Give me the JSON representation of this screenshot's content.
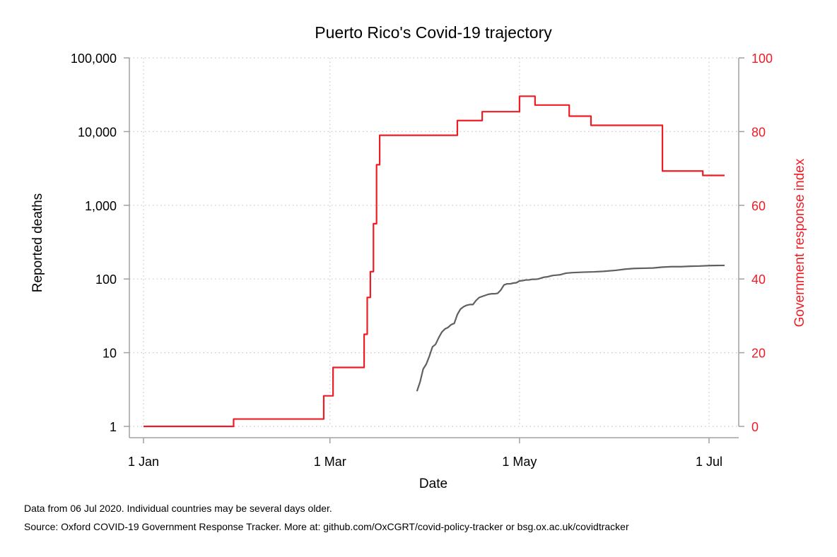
{
  "chart_data": {
    "type": "line",
    "title": "Puerto Rico's Covid-19 trajectory",
    "xlabel": "Date",
    "ylabel_left": "Reported deaths",
    "ylabel_right": "Government response index",
    "x_ticks": [
      {
        "date": "2020-01-01",
        "label": "1 Jan"
      },
      {
        "date": "2020-03-01",
        "label": "1 Mar"
      },
      {
        "date": "2020-05-01",
        "label": "1 May"
      },
      {
        "date": "2020-07-01",
        "label": "1 Jul"
      }
    ],
    "xlim": [
      "2020-01-01",
      "2020-07-06"
    ],
    "left_axis": {
      "scale": "log",
      "ylim": [
        1,
        100000
      ],
      "ticks": [
        {
          "value": 1,
          "label": "1"
        },
        {
          "value": 10,
          "label": "10"
        },
        {
          "value": 100,
          "label": "100"
        },
        {
          "value": 1000,
          "label": "1,000"
        },
        {
          "value": 10000,
          "label": "10,000"
        },
        {
          "value": 100000,
          "label": "100,000"
        }
      ]
    },
    "right_axis": {
      "scale": "linear",
      "ylim": [
        0,
        100
      ],
      "ticks": [
        {
          "value": 0,
          "label": "0"
        },
        {
          "value": 20,
          "label": "20"
        },
        {
          "value": 40,
          "label": "40"
        },
        {
          "value": 60,
          "label": "60"
        },
        {
          "value": 80,
          "label": "80"
        },
        {
          "value": 100,
          "label": "100"
        }
      ]
    },
    "grid": true,
    "series": [
      {
        "axis": "right",
        "color": "#ee1c25",
        "step": true,
        "points": [
          [
            "2020-01-01",
            0
          ],
          [
            "2020-01-30",
            2
          ],
          [
            "2020-02-28",
            8.3
          ],
          [
            "2020-03-02",
            16
          ],
          [
            "2020-03-11",
            16
          ],
          [
            "2020-03-12",
            25
          ],
          [
            "2020-03-13",
            35
          ],
          [
            "2020-03-14",
            42
          ],
          [
            "2020-03-15",
            55
          ],
          [
            "2020-03-16",
            71
          ],
          [
            "2020-03-17",
            79
          ],
          [
            "2020-04-10",
            79
          ],
          [
            "2020-04-11",
            83
          ],
          [
            "2020-04-19",
            85.4
          ],
          [
            "2020-05-01",
            89.6
          ],
          [
            "2020-05-06",
            87.2
          ],
          [
            "2020-05-17",
            84.2
          ],
          [
            "2020-05-24",
            81.7
          ],
          [
            "2020-06-16",
            69.3
          ],
          [
            "2020-06-29",
            68.1
          ],
          [
            "2020-07-06",
            68.1
          ]
        ]
      },
      {
        "axis": "left",
        "color": "#606060",
        "step": false,
        "points": [
          [
            "2020-03-29",
            3
          ],
          [
            "2020-03-30",
            4
          ],
          [
            "2020-03-31",
            6
          ],
          [
            "2020-04-01",
            7
          ],
          [
            "2020-04-02",
            9
          ],
          [
            "2020-04-03",
            12
          ],
          [
            "2020-04-04",
            13
          ],
          [
            "2020-04-05",
            16
          ],
          [
            "2020-04-06",
            19
          ],
          [
            "2020-04-07",
            21
          ],
          [
            "2020-04-08",
            22
          ],
          [
            "2020-04-09",
            24
          ],
          [
            "2020-04-10",
            25
          ],
          [
            "2020-04-11",
            33
          ],
          [
            "2020-04-12",
            39
          ],
          [
            "2020-04-13",
            42
          ],
          [
            "2020-04-14",
            44
          ],
          [
            "2020-04-15",
            45
          ],
          [
            "2020-04-16",
            45
          ],
          [
            "2020-04-17",
            51
          ],
          [
            "2020-04-18",
            56
          ],
          [
            "2020-04-19",
            58
          ],
          [
            "2020-04-20",
            60
          ],
          [
            "2020-04-21",
            62
          ],
          [
            "2020-04-22",
            63
          ],
          [
            "2020-04-23",
            63
          ],
          [
            "2020-04-24",
            64
          ],
          [
            "2020-04-25",
            71
          ],
          [
            "2020-04-26",
            83
          ],
          [
            "2020-04-27",
            86
          ],
          [
            "2020-04-28",
            86
          ],
          [
            "2020-04-29",
            88
          ],
          [
            "2020-04-30",
            89
          ],
          [
            "2020-05-01",
            94
          ],
          [
            "2020-05-02",
            95
          ],
          [
            "2020-05-03",
            97
          ],
          [
            "2020-05-04",
            97
          ],
          [
            "2020-05-05",
            99
          ],
          [
            "2020-05-06",
            99
          ],
          [
            "2020-05-07",
            100
          ],
          [
            "2020-05-08",
            103
          ],
          [
            "2020-05-09",
            106
          ],
          [
            "2020-05-10",
            107
          ],
          [
            "2020-05-11",
            110
          ],
          [
            "2020-05-12",
            112
          ],
          [
            "2020-05-13",
            113
          ],
          [
            "2020-05-14",
            114
          ],
          [
            "2020-05-15",
            117
          ],
          [
            "2020-05-16",
            120
          ],
          [
            "2020-05-18",
            122
          ],
          [
            "2020-05-20",
            123
          ],
          [
            "2020-05-22",
            124
          ],
          [
            "2020-05-25",
            125
          ],
          [
            "2020-05-28",
            127
          ],
          [
            "2020-06-01",
            131
          ],
          [
            "2020-06-04",
            136
          ],
          [
            "2020-06-07",
            139
          ],
          [
            "2020-06-10",
            140
          ],
          [
            "2020-06-13",
            141
          ],
          [
            "2020-06-16",
            145
          ],
          [
            "2020-06-19",
            147
          ],
          [
            "2020-06-22",
            147
          ],
          [
            "2020-06-25",
            149
          ],
          [
            "2020-06-28",
            150
          ],
          [
            "2020-07-01",
            152
          ],
          [
            "2020-07-06",
            153
          ]
        ]
      }
    ]
  },
  "notes": {
    "line1": "Data from 06 Jul 2020. Individual countries may be several days older.",
    "line2": "Source: Oxford COVID-19 Government Response Tracker. More at: github.com/OxCGRT/covid-policy-tracker or bsg.ox.ac.uk/covidtracker"
  }
}
